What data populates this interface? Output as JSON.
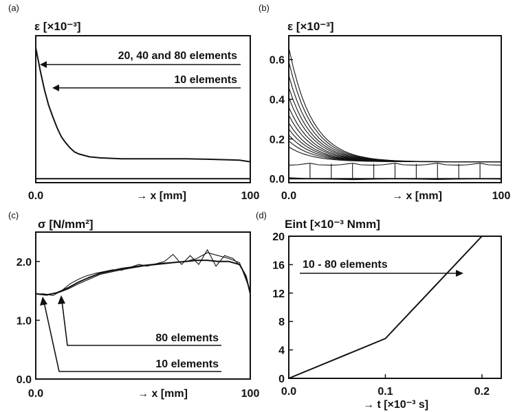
{
  "chart_data": [
    {
      "id": "a",
      "type": "line",
      "panel_label": "(a)",
      "ylabel": "ε [×10⁻³]",
      "xlabel": "→ x [mm]",
      "xlim": [
        0,
        100
      ],
      "ylim": [
        -0.02,
        0.72
      ],
      "x_ticks": [
        "0.0",
        "100"
      ],
      "series": [
        {
          "x": [
            0,
            2,
            4,
            6,
            8,
            10,
            12,
            14,
            16,
            18,
            20,
            25,
            30,
            40,
            50,
            60,
            70,
            80,
            90,
            95,
            100
          ],
          "values": [
            0.66,
            0.55,
            0.45,
            0.37,
            0.31,
            0.255,
            0.21,
            0.18,
            0.155,
            0.135,
            0.125,
            0.11,
            0.105,
            0.1,
            0.1,
            0.1,
            0.1,
            0.098,
            0.095,
            0.093,
            0.085
          ]
        },
        {
          "x": [
            0,
            100
          ],
          "values": [
            0.0,
            0.0
          ]
        }
      ],
      "annotations": [
        {
          "text": "20, 40 and 80 elements",
          "x": 1,
          "y": 0.61
        },
        {
          "text": "10 elements",
          "x": 1,
          "y": 0.5
        }
      ]
    },
    {
      "id": "b",
      "type": "line",
      "panel_label": "(b)",
      "ylabel": "ε [×10⁻³]",
      "xlabel": "→ x [mm]",
      "xlim": [
        0,
        100
      ],
      "ylim": [
        -0.02,
        0.72
      ],
      "x_ticks": [
        "0.0",
        "100"
      ],
      "y_ticks": [
        {
          "label": "0.0",
          "value": 0.0
        },
        {
          "label": "0.2",
          "value": 0.2
        },
        {
          "label": "0.4",
          "value": 0.4
        },
        {
          "label": "0.6",
          "value": 0.6
        }
      ],
      "decay_amplitudes": [
        0.66,
        0.59,
        0.52,
        0.46,
        0.41,
        0.36,
        0.32,
        0.28,
        0.25,
        0.22,
        0.19,
        0.16
      ],
      "baseline": 0.085,
      "wave_front_positions": [
        0,
        10,
        20,
        30,
        40,
        50,
        60,
        70,
        80,
        90,
        100
      ]
    },
    {
      "id": "c",
      "type": "line",
      "panel_label": "(c)",
      "ylabel": "σ [N/mm²]",
      "xlabel": "→ x [mm]",
      "xlim": [
        0,
        100
      ],
      "ylim": [
        0,
        2.5
      ],
      "x_ticks": [
        "0.0",
        "100"
      ],
      "y_ticks": [
        {
          "label": "0.0",
          "value": 0.0
        },
        {
          "label": "1.0",
          "value": 1.0
        },
        {
          "label": "2.0",
          "value": 2.0
        }
      ],
      "series": [
        {
          "x": [
            0,
            5,
            10,
            15,
            20,
            25,
            30,
            40,
            50,
            60,
            70,
            75,
            80,
            85,
            90,
            95,
            98,
            100
          ],
          "values": [
            1.45,
            1.43,
            1.47,
            1.55,
            1.65,
            1.73,
            1.8,
            1.88,
            1.93,
            1.97,
            2.0,
            2.02,
            2.02,
            2.0,
            2.0,
            1.95,
            1.75,
            1.45
          ]
        },
        {
          "x": [
            0,
            4,
            8,
            12,
            16,
            20,
            24,
            28,
            32,
            36,
            40,
            44,
            48,
            52,
            56,
            60,
            64,
            68,
            72,
            76,
            80,
            84,
            88,
            92,
            96,
            100
          ],
          "values": [
            1.45,
            1.45,
            1.42,
            1.5,
            1.62,
            1.7,
            1.76,
            1.8,
            1.83,
            1.86,
            1.85,
            1.9,
            1.95,
            1.92,
            1.96,
            2.0,
            2.12,
            1.95,
            2.1,
            1.95,
            2.2,
            1.92,
            2.1,
            2.05,
            1.9,
            1.5
          ]
        },
        {
          "x": [
            0,
            5,
            10,
            15,
            20,
            30,
            40,
            50,
            60,
            65,
            70,
            75,
            80,
            85,
            90,
            95,
            100
          ],
          "values": [
            1.45,
            1.44,
            1.46,
            1.53,
            1.62,
            1.78,
            1.86,
            1.92,
            1.96,
            1.98,
            2.0,
            2.05,
            2.15,
            2.1,
            2.05,
            1.98,
            1.5
          ]
        }
      ],
      "annotations": [
        {
          "text": "80 elements",
          "x": 12,
          "y": 1.47
        },
        {
          "text": "10 elements",
          "x": 2,
          "y": 1.43
        }
      ]
    },
    {
      "id": "d",
      "type": "line",
      "panel_label": "(d)",
      "ylabel": "Eint [×10⁻³ Nmm]",
      "xlabel": "→ t [×10⁻³ s]",
      "xlim": [
        0,
        0.22
      ],
      "ylim": [
        0,
        20
      ],
      "x_ticks": [
        {
          "label": "0.0",
          "value": 0.0
        },
        {
          "label": "0.1",
          "value": 0.1
        },
        {
          "label": "0.2",
          "value": 0.2
        }
      ],
      "y_ticks": [
        {
          "label": "0",
          "value": 0
        },
        {
          "label": "4",
          "value": 4
        },
        {
          "label": "8",
          "value": 8
        },
        {
          "label": "12",
          "value": 12
        },
        {
          "label": "16",
          "value": 16
        },
        {
          "label": "20",
          "value": 20
        }
      ],
      "series": [
        {
          "x": [
            0.0,
            0.1,
            0.2
          ],
          "values": [
            0.0,
            5.6,
            20.0
          ]
        }
      ],
      "annotations": [
        {
          "text": "10 - 80 elements",
          "x": 0.16,
          "y": 14.9
        }
      ]
    }
  ]
}
